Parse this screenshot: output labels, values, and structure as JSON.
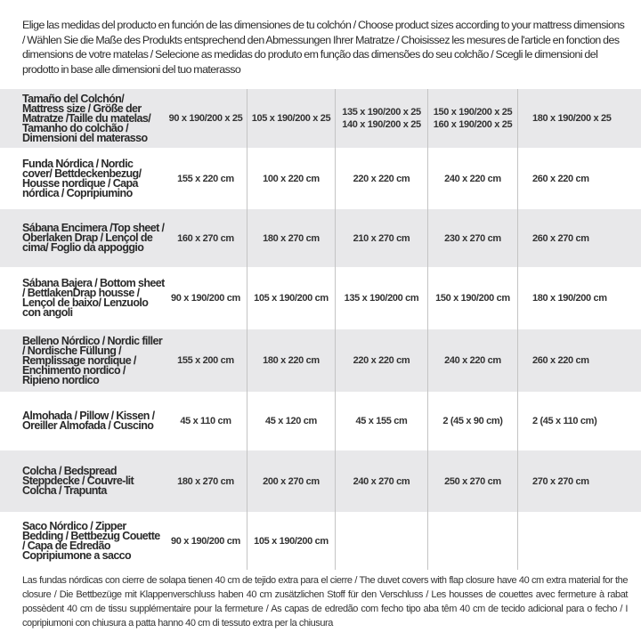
{
  "intro": "Elige las medidas del producto en función de las dimensiones de tu colchón / Choose product sizes according to your mattress dimensions / Wählen Sie die Maße des Produkts entsprechend den Abmessungen Ihrer Matratze / Choisissez les mesures de l'article en fonction des dimensions de votre matelas / Selecione as medidas do produto em função das dimensões do seu colchão / Scegli le dimensioni del prodotto in base alle dimensioni del tuo materasso",
  "table": {
    "header": {
      "label": "Tamaño del Colchón/ Mattress size / Größe der Matratze /Taille du matelas/ Tamanho do colchão / Dimensioni del materasso",
      "c1": "90 x 190/200 x 25",
      "c2": "105 x 190/200 x 25",
      "c3a": "135 x 190/200 x 25",
      "c3b": "140 x 190/200 x 25",
      "c4a": "150 x 190/200 x 25",
      "c4b": "160 x 190/200 x 25",
      "c5": "180 x 190/200 x 25"
    },
    "rows": [
      {
        "label": "Funda Nórdica /  Nordic cover/ Bettdeckenbezug/ Housse nordique  / Capa nórdica / Copripiumino",
        "values": [
          "155 x 220 cm",
          "100 x 220 cm",
          "220 x 220 cm",
          "240 x 220 cm",
          "260 x 220 cm"
        ]
      },
      {
        "label": "Sábana Encimera /Top sheet / Oberlaken Drap / Lençol de cima/ Foglio da appoggio",
        "values": [
          "160 x 270 cm",
          "180 x 270 cm",
          "210 x 270 cm",
          "230 x 270 cm",
          "260 x 270 cm"
        ]
      },
      {
        "label": "Sábana Bajera / Bottom sheet / BettlakenDrap housse / Lençol de baixo/ Lenzuolo con angoli",
        "values": [
          "90 x 190/200 cm",
          "105 x 190/200 cm",
          "135 x 190/200 cm",
          "150 x 190/200 cm",
          "180 x 190/200 cm"
        ]
      },
      {
        "label": "Belleno Nórdico / Nordic filler / Nordische Füllung / Remplissage nordique / Enchimento nordico / Ripieno nordico",
        "values": [
          "155 x 200 cm",
          "180 x 220 cm",
          "220 x 220 cm",
          "240 x 220 cm",
          "260 x 220 cm"
        ]
      },
      {
        "label": "Almohada  / Pillow / Kissen / Oreiller Almofada / Cuscino",
        "values": [
          "45 x 110 cm",
          "45 x 120 cm",
          "45 x 155 cm",
          "2 (45 x 90 cm)",
          "2 (45 x 110 cm)"
        ]
      },
      {
        "label": "Colcha / Bedspread Steppdecke / Couvre-lit Colcha / Trapunta",
        "values": [
          "180 x 270 cm",
          "200 x 270 cm",
          "240 x 270 cm",
          "250 x 270 cm",
          "270 x 270 cm"
        ]
      },
      {
        "label": "Saco Nórdico / Zipper Bedding / Bettbezug Couette  / Capa de Edredão Copripiumone a sacco",
        "values": [
          "90 x 190/200 cm",
          "105 x 190/200 cm",
          "",
          "",
          ""
        ]
      }
    ]
  },
  "note": "Las fundas nórdicas con cierre de solapa tienen 40 cm de tejido extra para el cierre  / The duvet covers with flap closure have 40 cm extra material for the closure / Die Bettbezüge mit Klappenverschluss haben 40 cm zusätzlichen Stoff für den Verschluss / Les housses de couettes avec fermeture à rabat possèdent 40 cm de tissu supplémentaire pour la fermeture / As capas de edredão com fecho tipo aba têm 40 cm de tecido adicional para o fecho / I copripiumoni con chiusura a patta hanno 40 cm di tessuto extra per la chiusura"
}
